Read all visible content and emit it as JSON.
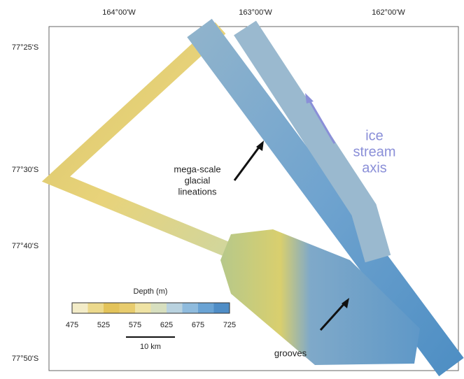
{
  "map": {
    "top_labels": [
      "164°00'W",
      "163°00'W",
      "162°00'W"
    ],
    "left_labels": [
      "77°25'S",
      "77°30'S",
      "77°40'S",
      "77°50'S"
    ],
    "annotations": {
      "ice_stream": [
        "ice",
        "stream",
        "axis"
      ],
      "lineations": [
        "mega-scale",
        "glacial",
        "lineations"
      ],
      "grooves": "grooves"
    },
    "legend": {
      "title": "Depth (m)",
      "ticks": [
        "475",
        "525",
        "575",
        "625",
        "675",
        "725"
      ]
    },
    "scale_bar": "10 km"
  }
}
